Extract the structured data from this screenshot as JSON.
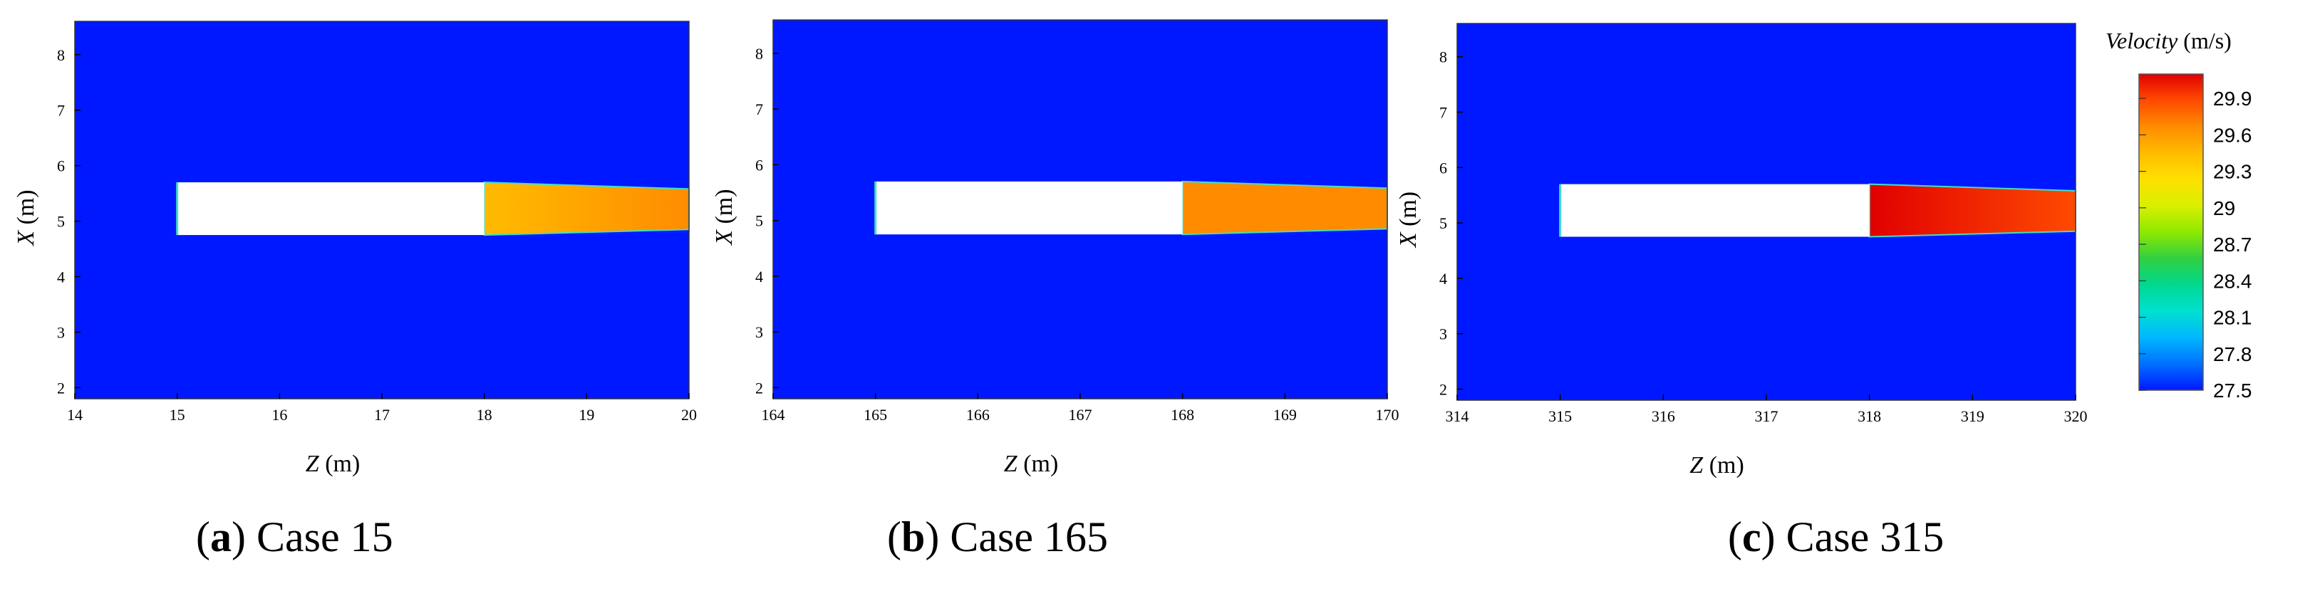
{
  "chart_data": [
    {
      "type": "heatmap",
      "panel": "a",
      "caption_letter": "a",
      "caption_text": "Case 15",
      "xlabel": "Z",
      "xunit": "(m)",
      "ylabel": "X",
      "yunit": "(m)",
      "xlim": [
        14,
        20
      ],
      "ylim": [
        1.8,
        8.6
      ],
      "xticks": [
        14,
        15,
        16,
        17,
        18,
        19,
        20
      ],
      "yticks": [
        2,
        3,
        4,
        5,
        6,
        7,
        8
      ],
      "background_velocity": 27.5,
      "body": {
        "z_start": 15,
        "z_end": 18,
        "x_bottom": 4.75,
        "x_top": 5.7
      },
      "wake": {
        "z_start": 18,
        "z_end": 20,
        "x_bottom_start": 4.75,
        "x_top_start": 5.7,
        "x_bottom_end": 4.85,
        "x_top_end": 5.58,
        "velocity_start": 29.4,
        "velocity_end": 29.7
      }
    },
    {
      "type": "heatmap",
      "panel": "b",
      "caption_letter": "b",
      "caption_text": "Case 165",
      "xlabel": "Z",
      "xunit": "(m)",
      "ylabel": "X",
      "yunit": "(m)",
      "xlim": [
        164,
        170
      ],
      "ylim": [
        1.8,
        8.6
      ],
      "xticks": [
        164,
        165,
        166,
        167,
        168,
        169,
        170
      ],
      "yticks": [
        2,
        3,
        4,
        5,
        6,
        7,
        8
      ],
      "background_velocity": 27.5,
      "body": {
        "z_start": 165,
        "z_end": 168,
        "x_bottom": 4.75,
        "x_top": 5.7
      },
      "wake": {
        "z_start": 168,
        "z_end": 170,
        "x_bottom_start": 4.75,
        "x_top_start": 5.7,
        "x_bottom_end": 4.85,
        "x_top_end": 5.58,
        "velocity_start": 29.6,
        "velocity_end": 29.7
      }
    },
    {
      "type": "heatmap",
      "panel": "c",
      "caption_letter": "c",
      "caption_text": "Case 315",
      "xlabel": "Z",
      "xunit": "(m)",
      "ylabel": "X",
      "yunit": "(m)",
      "xlim": [
        314,
        320
      ],
      "ylim": [
        1.8,
        8.6
      ],
      "xticks": [
        314,
        315,
        316,
        317,
        318,
        319,
        320
      ],
      "yticks": [
        2,
        3,
        4,
        5,
        6,
        7,
        8
      ],
      "background_velocity": 27.5,
      "body": {
        "z_start": 315,
        "z_end": 318,
        "x_bottom": 4.75,
        "x_top": 5.7
      },
      "wake": {
        "z_start": 318,
        "z_end": 320,
        "x_bottom_start": 4.75,
        "x_top_start": 5.7,
        "x_bottom_end": 4.85,
        "x_top_end": 5.58,
        "velocity_start": 30.0,
        "velocity_end": 29.9
      }
    }
  ],
  "colorbar": {
    "title_italic": "Velocity",
    "title_unit": "(m/s)",
    "min": 27.5,
    "max": 30.1,
    "ticks": [
      "29.9",
      "29.6",
      "29.3",
      "29",
      "28.7",
      "28.4",
      "28.1",
      "27.8",
      "27.5"
    ],
    "colors": [
      "#e00000",
      "#ff4a00",
      "#ff8c00",
      "#ffbb00",
      "#ffe000",
      "#d8f000",
      "#8ee800",
      "#30d040",
      "#00d890",
      "#00e0d0",
      "#00b8ff",
      "#0070ff",
      "#0018ff"
    ]
  },
  "colors": {
    "background": "#0018ff",
    "body": "#ffffff",
    "body_edge": "#40e0c0"
  }
}
